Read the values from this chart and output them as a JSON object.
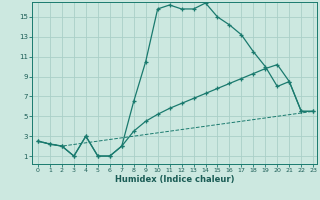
{
  "xlabel": "Humidex (Indice chaleur)",
  "bg_color": "#cce8e0",
  "line_color": "#1a7a6e",
  "grid_color": "#aacfc8",
  "xlim": [
    -0.5,
    23.3
  ],
  "ylim": [
    0.2,
    16.5
  ],
  "xticks": [
    0,
    1,
    2,
    3,
    4,
    5,
    6,
    7,
    8,
    9,
    10,
    11,
    12,
    13,
    14,
    15,
    16,
    17,
    18,
    19,
    20,
    21,
    22,
    23
  ],
  "yticks": [
    1,
    3,
    5,
    7,
    9,
    11,
    13,
    15
  ],
  "line1_x": [
    0,
    1,
    2,
    3,
    4,
    5,
    6,
    7,
    8,
    9,
    10,
    11,
    12,
    13,
    14,
    15,
    16,
    17,
    18,
    19,
    20,
    21,
    22,
    23
  ],
  "line1_y": [
    2.5,
    2.2,
    2.0,
    1.0,
    3.0,
    1.0,
    1.0,
    2.0,
    6.5,
    10.5,
    15.8,
    16.2,
    15.8,
    15.8,
    16.4,
    15.0,
    14.2,
    13.2,
    11.5,
    10.0,
    8.0,
    8.5,
    5.5,
    5.5
  ],
  "line2_x": [
    0,
    1,
    2,
    3,
    4,
    5,
    6,
    7,
    8,
    9,
    10,
    11,
    12,
    13,
    14,
    15,
    16,
    17,
    18,
    19,
    20,
    21,
    22,
    23
  ],
  "line2_y": [
    2.5,
    2.2,
    2.0,
    1.0,
    3.0,
    1.0,
    1.0,
    2.0,
    3.5,
    4.5,
    5.2,
    5.8,
    6.3,
    6.8,
    7.3,
    7.8,
    8.3,
    8.8,
    9.3,
    9.8,
    10.2,
    8.5,
    5.5,
    5.5
  ],
  "line3_x": [
    0,
    2,
    23
  ],
  "line3_y": [
    2.5,
    2.0,
    5.5
  ]
}
